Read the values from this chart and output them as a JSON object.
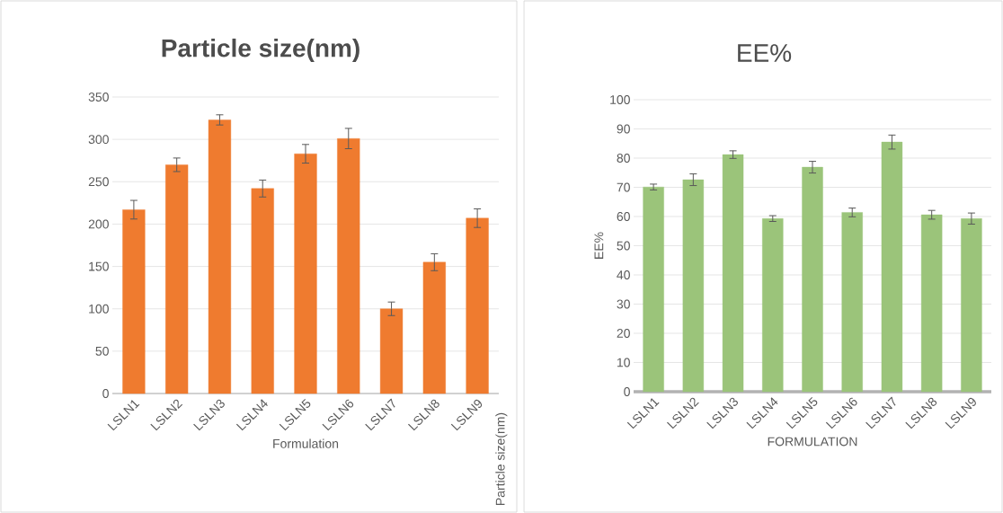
{
  "chart_data": [
    {
      "type": "bar",
      "title": "Particle size(nm)",
      "xlabel": "Formulation",
      "ylabel": "Particle size(nm)",
      "categories": [
        "LSLN1",
        "LSLN2",
        "LSLN3",
        "LSLN4",
        "LSLN5",
        "LSLN6",
        "LSLN7",
        "LSLN8",
        "LSLN9"
      ],
      "values": [
        217,
        270,
        323,
        242,
        283,
        301,
        100,
        155,
        207
      ],
      "errors": [
        11,
        8,
        6,
        10,
        11,
        12,
        8,
        10,
        11
      ],
      "color": "#ef7b2f",
      "ylim": [
        0,
        350
      ],
      "yticks": [
        0,
        50,
        100,
        150,
        200,
        250,
        300,
        350
      ],
      "grid": "y"
    },
    {
      "type": "bar",
      "title": "EE%",
      "xlabel": "FORMULATION",
      "ylabel": "EE%",
      "categories": [
        "LSLN1",
        "LSLN2",
        "LSLN3",
        "LSLN4",
        "LSLN5",
        "LSLN6",
        "LSLN7",
        "LSLN8",
        "LSLN9"
      ],
      "values": [
        70.1,
        72.6,
        81.2,
        59.3,
        76.9,
        61.4,
        85.5,
        60.6,
        59.3
      ],
      "errors": [
        1,
        2,
        1.3,
        1,
        2,
        1.5,
        2.4,
        1.5,
        1.9
      ],
      "color": "#9bc47a",
      "ylim": [
        0,
        100
      ],
      "yticks": [
        0,
        10,
        20,
        30,
        40,
        50,
        60,
        70,
        80,
        90,
        100
      ],
      "grid": "y"
    }
  ]
}
